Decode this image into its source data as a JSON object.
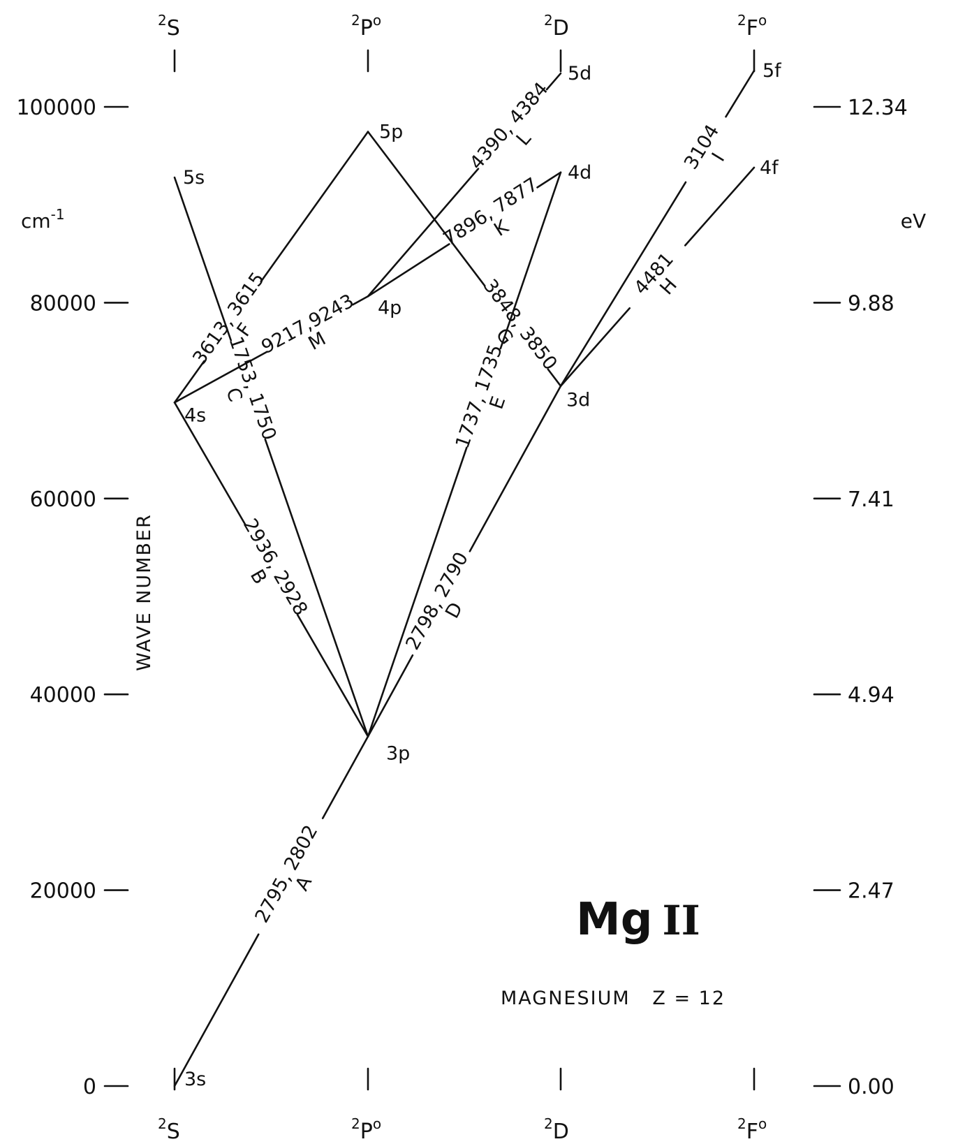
{
  "title": {
    "main": "Mg",
    "roman": "II"
  },
  "subtitle": "MAGNESIUM   Z = 12",
  "left_axis": {
    "unit": "cm",
    "unit_sup": "-1",
    "title": "WAVE NUMBER",
    "ticks": [
      {
        "value": 0,
        "label": "0"
      },
      {
        "value": 20000,
        "label": "20000"
      },
      {
        "value": 40000,
        "label": "40000"
      },
      {
        "value": 60000,
        "label": "60000"
      },
      {
        "value": 80000,
        "label": "80000"
      },
      {
        "value": 100000,
        "label": "100000"
      }
    ]
  },
  "right_axis": {
    "unit": "eV",
    "ticks": [
      {
        "value": 0,
        "label": "0.00"
      },
      {
        "value": 20000,
        "label": "2.47"
      },
      {
        "value": 40000,
        "label": "4.94"
      },
      {
        "value": 60000,
        "label": "7.41"
      },
      {
        "value": 80000,
        "label": "9.88"
      },
      {
        "value": 100000,
        "label": "12.34"
      }
    ]
  },
  "terms": [
    {
      "id": "S",
      "sup": "2",
      "letter": "S",
      "post": ""
    },
    {
      "id": "P",
      "sup": "2",
      "letter": "P",
      "post": "o"
    },
    {
      "id": "D",
      "sup": "2",
      "letter": "D",
      "post": ""
    },
    {
      "id": "F",
      "sup": "2",
      "letter": "F",
      "post": "o"
    }
  ],
  "levels": [
    {
      "id": "3s",
      "term": "S",
      "energy": 0,
      "label": "3s"
    },
    {
      "id": "4s",
      "term": "S",
      "energy": 69805,
      "label": "4s"
    },
    {
      "id": "5s",
      "term": "S",
      "energy": 92790,
      "label": "5s"
    },
    {
      "id": "3p",
      "term": "P",
      "energy": 35700,
      "label": "3p"
    },
    {
      "id": "4p",
      "term": "P",
      "energy": 80650,
      "label": "4p"
    },
    {
      "id": "5p",
      "term": "P",
      "energy": 97460,
      "label": "5p"
    },
    {
      "id": "3d",
      "term": "D",
      "energy": 71490,
      "label": "3d"
    },
    {
      "id": "4d",
      "term": "D",
      "energy": 93310,
      "label": "4d"
    },
    {
      "id": "5d",
      "term": "D",
      "energy": 103420,
      "label": "5d"
    },
    {
      "id": "4f",
      "term": "F",
      "energy": 93800,
      "label": "4f"
    },
    {
      "id": "5f",
      "term": "F",
      "energy": 103700,
      "label": "5f"
    }
  ],
  "transitions": [
    {
      "from": "3s",
      "to": "3p",
      "wavelengths": "2795, 2802",
      "letter": "A"
    },
    {
      "from": "4s",
      "to": "3p",
      "wavelengths": "2936, 2928",
      "letter": "B"
    },
    {
      "from": "5s",
      "to": "3p",
      "wavelengths": "1753, 1750",
      "letter": "C"
    },
    {
      "from": "3d",
      "to": "3p",
      "wavelengths": "2798, 2790",
      "letter": "D"
    },
    {
      "from": "4d",
      "to": "3p",
      "wavelengths": "1737, 1735",
      "letter": "E"
    },
    {
      "from": "4s",
      "to": "5p",
      "wavelengths": "3613, 3615",
      "letter": "F"
    },
    {
      "from": "5p",
      "to": "3d",
      "wavelengths": "3848, 3850",
      "letter": "G"
    },
    {
      "from": "3d",
      "to": "4f",
      "wavelengths": "4481",
      "letter": "H"
    },
    {
      "from": "3d",
      "to": "5f",
      "wavelengths": "3104",
      "letter": "I"
    },
    {
      "from": "4p",
      "to": "4d",
      "wavelengths": "7896, 7877",
      "letter": "K"
    },
    {
      "from": "4p",
      "to": "5d",
      "wavelengths": "4390, 4384",
      "letter": "L"
    },
    {
      "from": "4s",
      "to": "4p",
      "wavelengths": "9217,9243",
      "letter": "M"
    }
  ]
}
